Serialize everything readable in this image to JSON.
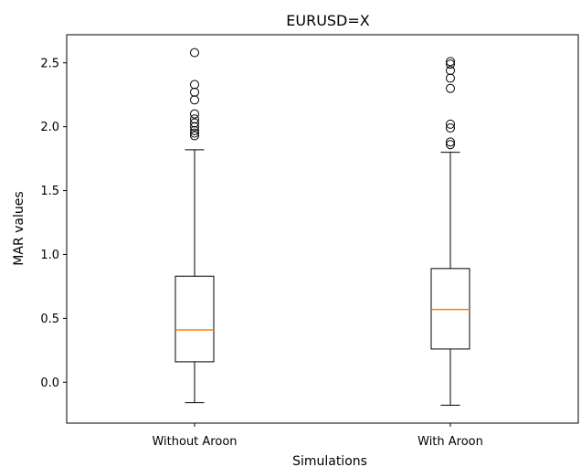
{
  "chart_data": {
    "type": "box",
    "title": "EURUSD=X",
    "xlabel": "Simulations",
    "ylabel": "MAR values",
    "categories": [
      "Without Aroon",
      "With Aroon"
    ],
    "ylim": [
      -0.32,
      2.72
    ],
    "yticks": [
      "0.0",
      "0.5",
      "1.0",
      "1.5",
      "2.0",
      "2.5"
    ],
    "grid": false,
    "series": [
      {
        "whisker_low": -0.16,
        "q1": 0.16,
        "median": 0.41,
        "q3": 0.83,
        "whisker_high": 1.82,
        "outliers": [
          1.93,
          1.95,
          1.97,
          2.0,
          2.03,
          2.06,
          2.1,
          2.21,
          2.27,
          2.33,
          2.58
        ]
      },
      {
        "whisker_low": -0.18,
        "q1": 0.26,
        "median": 0.57,
        "q3": 0.89,
        "whisker_high": 1.8,
        "outliers": [
          1.86,
          1.88,
          1.99,
          2.02,
          2.3,
          2.38,
          2.44,
          2.49,
          2.51
        ]
      }
    ],
    "colors": {
      "box": "#000000",
      "median": "#ff7f0e",
      "outlier": "#000000"
    }
  }
}
